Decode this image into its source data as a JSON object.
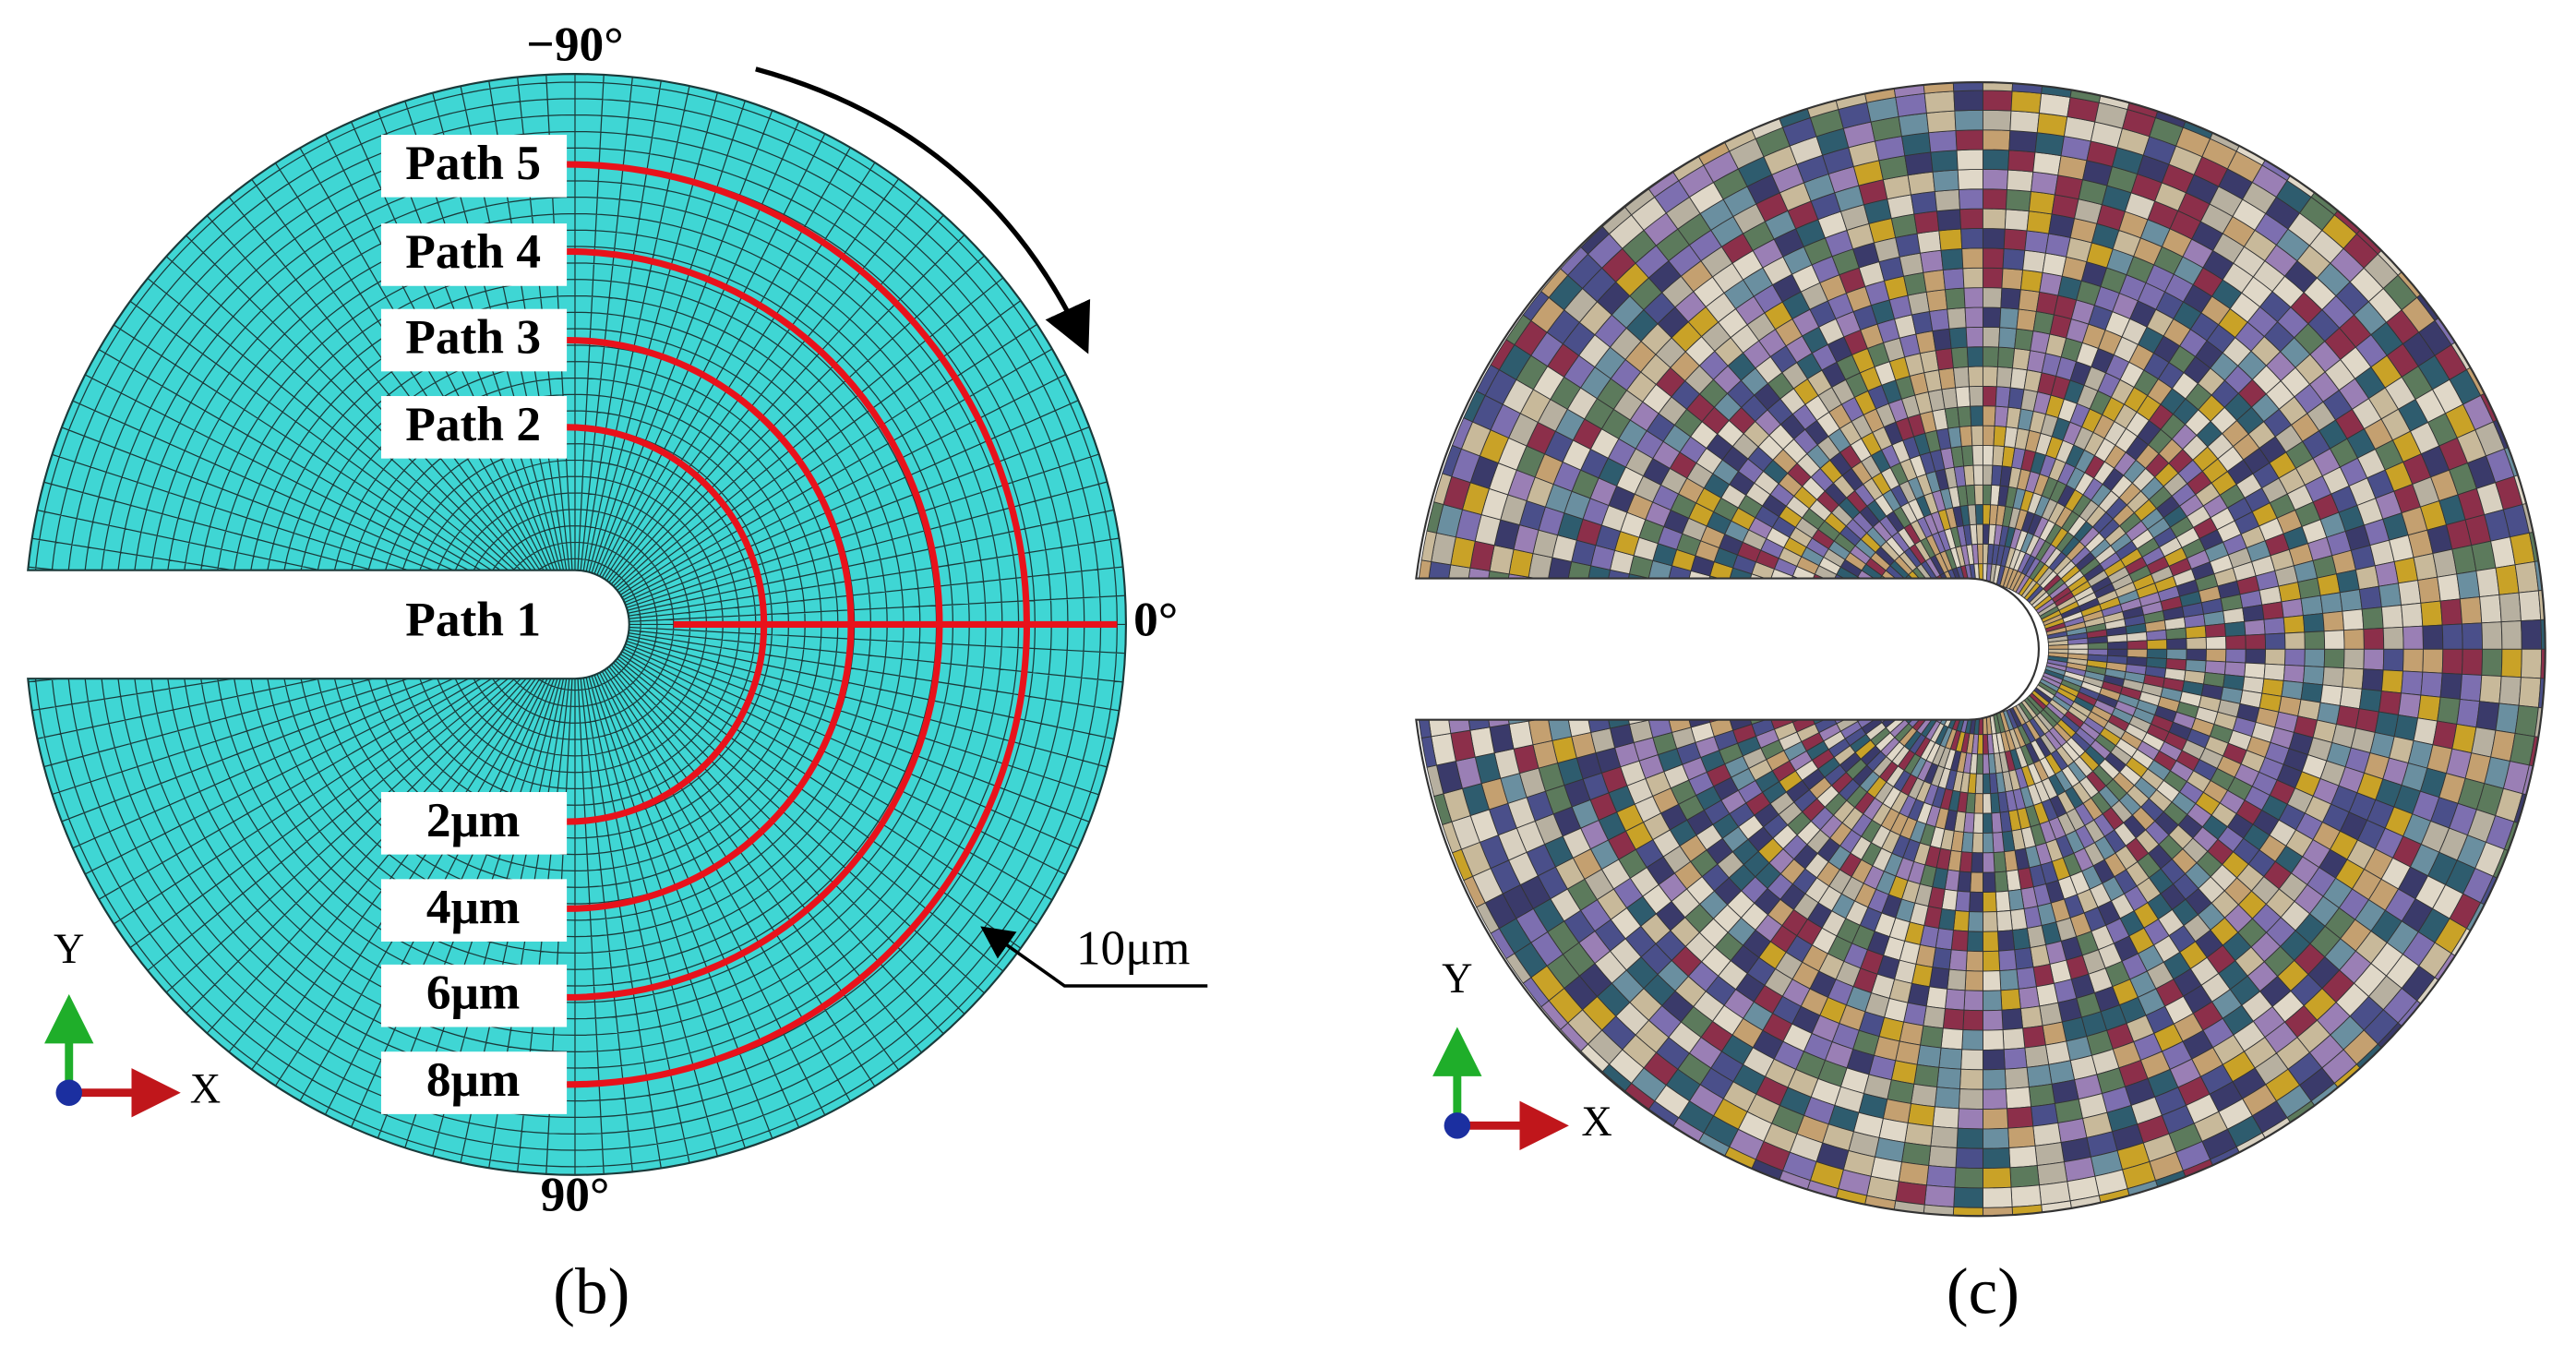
{
  "panels": [
    {
      "label": "(b)",
      "angles": {
        "top": "−90°",
        "right": "0°",
        "bottom": "90°"
      },
      "paths": [
        "Path 1",
        "Path 2",
        "Path 3",
        "Path 4",
        "Path 5"
      ],
      "radii": [
        "2μm",
        "4μm",
        "6μm",
        "8μm"
      ],
      "outer": "10μm",
      "axes": {
        "y": "Y",
        "x": "X"
      }
    },
    {
      "label": "(c)",
      "axes": {
        "y": "Y",
        "x": "X"
      }
    }
  ]
}
